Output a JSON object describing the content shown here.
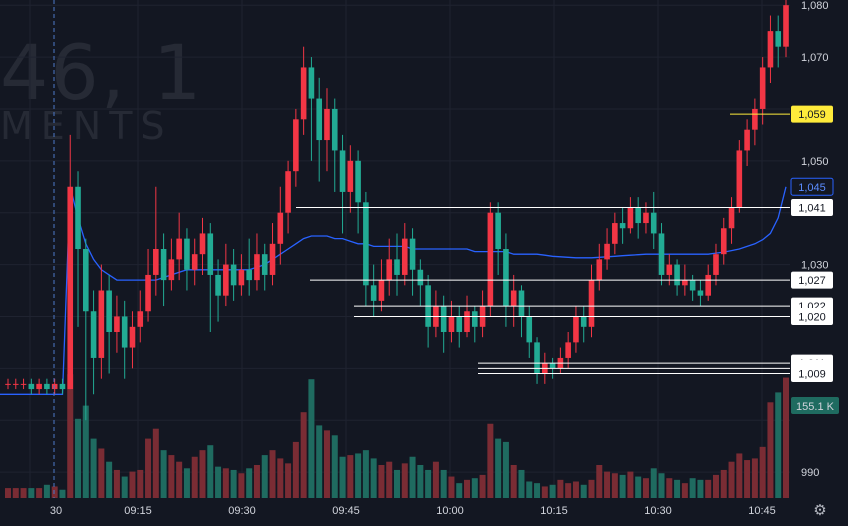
{
  "watermark": {
    "line1": "46, 1",
    "line2": "MENTS"
  },
  "colors": {
    "background": "#131722",
    "grid": "#1f2330",
    "up": "#f23645",
    "down": "#22ab94",
    "vwap": "#2962ff",
    "axis_text": "#d1d4dc",
    "highlight_label": "#ffeb3b"
  },
  "chart_data": {
    "type": "candlestick",
    "y_ticks": [
      "1,080",
      "1,070",
      "1,050",
      "1,030",
      "990"
    ],
    "y_tick_values": [
      1080,
      1070,
      1050,
      1030,
      990
    ],
    "x_ticks": [
      "30",
      "09:15",
      "09:30",
      "09:45",
      "10:00",
      "10:15",
      "10:30",
      "10:45"
    ],
    "ylim": [
      985,
      1081
    ],
    "price_labels": [
      {
        "text": "1,059",
        "value": 1059,
        "style": "yellow"
      },
      {
        "text": "1,045",
        "value": 1045,
        "style": "blue"
      },
      {
        "text": "1,041",
        "value": 1041,
        "style": "white"
      },
      {
        "text": "1,027",
        "value": 1027,
        "style": "white"
      },
      {
        "text": "1,022",
        "value": 1022,
        "style": "white"
      },
      {
        "text": "1,020",
        "value": 1020,
        "style": "white"
      },
      {
        "text": "1,011",
        "value": 1011,
        "style": "white"
      },
      {
        "text": "1,010",
        "value": 1010,
        "style": "white"
      },
      {
        "text": "1,009",
        "value": 1009,
        "style": "white"
      }
    ],
    "volume_label": "155.1 K",
    "candles": [
      [
        1007,
        1007,
        1006,
        1008
      ],
      [
        1007,
        1007,
        1006,
        1008
      ],
      [
        1007,
        1007,
        1006,
        1008
      ],
      [
        1007,
        1006,
        1005,
        1008
      ],
      [
        1006,
        1007,
        1005,
        1008
      ],
      [
        1007,
        1006,
        1005,
        1008
      ],
      [
        1006,
        1007,
        1005,
        1008
      ],
      [
        1007,
        1006,
        1005,
        1008
      ],
      [
        1006,
        1045,
        1006,
        1055
      ],
      [
        1045,
        1033,
        1018,
        1048
      ],
      [
        1033,
        1021,
        1000,
        1035
      ],
      [
        1021,
        1012,
        1005,
        1025
      ],
      [
        1012,
        1025,
        1008,
        1030
      ],
      [
        1025,
        1017,
        1009,
        1028
      ],
      [
        1017,
        1020,
        1013,
        1024
      ],
      [
        1020,
        1014,
        1008,
        1023
      ],
      [
        1014,
        1018,
        1010,
        1021
      ],
      [
        1018,
        1021,
        1015,
        1025
      ],
      [
        1021,
        1028,
        1019,
        1033
      ],
      [
        1028,
        1033,
        1024,
        1045
      ],
      [
        1033,
        1027,
        1022,
        1036
      ],
      [
        1027,
        1031,
        1025,
        1035
      ],
      [
        1031,
        1035,
        1027,
        1040
      ],
      [
        1035,
        1029,
        1025,
        1037
      ],
      [
        1029,
        1032,
        1026,
        1035
      ],
      [
        1032,
        1036,
        1028,
        1039
      ],
      [
        1036,
        1028,
        1017,
        1038
      ],
      [
        1028,
        1024,
        1019,
        1031
      ],
      [
        1024,
        1030,
        1022,
        1034
      ],
      [
        1030,
        1026,
        1023,
        1033
      ],
      [
        1026,
        1029,
        1024,
        1032
      ],
      [
        1029,
        1027,
        1024,
        1035
      ],
      [
        1027,
        1032,
        1025,
        1036
      ],
      [
        1032,
        1028,
        1025,
        1034
      ],
      [
        1028,
        1034,
        1026,
        1038
      ],
      [
        1034,
        1040,
        1030,
        1045
      ],
      [
        1040,
        1048,
        1036,
        1050
      ],
      [
        1048,
        1058,
        1045,
        1060
      ],
      [
        1058,
        1068,
        1055,
        1072
      ],
      [
        1068,
        1062,
        1050,
        1070
      ],
      [
        1062,
        1054,
        1046,
        1066
      ],
      [
        1054,
        1060,
        1048,
        1064
      ],
      [
        1060,
        1052,
        1044,
        1062
      ],
      [
        1052,
        1044,
        1036,
        1055
      ],
      [
        1044,
        1050,
        1040,
        1053
      ],
      [
        1050,
        1042,
        1036,
        1052
      ],
      [
        1042,
        1026,
        1022,
        1044
      ],
      [
        1026,
        1023,
        1020,
        1030
      ],
      [
        1023,
        1027,
        1021,
        1031
      ],
      [
        1027,
        1031,
        1024,
        1035
      ],
      [
        1031,
        1028,
        1024,
        1036
      ],
      [
        1028,
        1035,
        1026,
        1038
      ],
      [
        1035,
        1029,
        1024,
        1037
      ],
      [
        1029,
        1026,
        1022,
        1031
      ],
      [
        1026,
        1018,
        1014,
        1028
      ],
      [
        1018,
        1022,
        1016,
        1025
      ],
      [
        1022,
        1017,
        1013,
        1024
      ],
      [
        1017,
        1020,
        1015,
        1023
      ],
      [
        1020,
        1017,
        1014,
        1022
      ],
      [
        1017,
        1021,
        1016,
        1024
      ],
      [
        1021,
        1018,
        1015,
        1022
      ],
      [
        1018,
        1022,
        1016,
        1025
      ],
      [
        1022,
        1040,
        1020,
        1042
      ],
      [
        1040,
        1033,
        1028,
        1042
      ],
      [
        1033,
        1022,
        1018,
        1036
      ],
      [
        1022,
        1025,
        1018,
        1028
      ],
      [
        1025,
        1020,
        1016,
        1026
      ],
      [
        1020,
        1015,
        1012,
        1022
      ],
      [
        1015,
        1009,
        1007,
        1016
      ],
      [
        1009,
        1011,
        1007,
        1013
      ],
      [
        1011,
        1010,
        1008,
        1012
      ],
      [
        1010,
        1012,
        1009,
        1014
      ],
      [
        1012,
        1015,
        1010,
        1017
      ],
      [
        1015,
        1020,
        1013,
        1022
      ],
      [
        1020,
        1018,
        1015,
        1022
      ],
      [
        1018,
        1027,
        1016,
        1030
      ],
      [
        1027,
        1031,
        1025,
        1034
      ],
      [
        1031,
        1034,
        1029,
        1037
      ],
      [
        1034,
        1038,
        1032,
        1040
      ],
      [
        1038,
        1037,
        1034,
        1041
      ],
      [
        1037,
        1041,
        1036,
        1043
      ],
      [
        1041,
        1038,
        1035,
        1043
      ],
      [
        1038,
        1040,
        1036,
        1042
      ],
      [
        1040,
        1036,
        1033,
        1044
      ],
      [
        1036,
        1028,
        1026,
        1038
      ],
      [
        1028,
        1030,
        1026,
        1032
      ],
      [
        1030,
        1026,
        1024,
        1031
      ],
      [
        1026,
        1027,
        1024,
        1030
      ],
      [
        1027,
        1025,
        1023,
        1028
      ],
      [
        1025,
        1024,
        1022,
        1027
      ],
      [
        1024,
        1028,
        1023,
        1030
      ],
      [
        1028,
        1032,
        1026,
        1034
      ],
      [
        1032,
        1037,
        1030,
        1039
      ],
      [
        1037,
        1041,
        1034,
        1043
      ],
      [
        1041,
        1052,
        1040,
        1054
      ],
      [
        1052,
        1056,
        1049,
        1058
      ],
      [
        1056,
        1060,
        1053,
        1062
      ],
      [
        1060,
        1068,
        1057,
        1070
      ],
      [
        1068,
        1075,
        1065,
        1078
      ],
      [
        1075,
        1072,
        1068,
        1078
      ],
      [
        1072,
        1080,
        1070,
        1082
      ]
    ],
    "volume": [
      6,
      6,
      6,
      6,
      6,
      8,
      7,
      5,
      75,
      48,
      56,
      36,
      30,
      22,
      17,
      13,
      16,
      17,
      36,
      42,
      29,
      26,
      22,
      18,
      25,
      29,
      32,
      19,
      18,
      17,
      15,
      18,
      20,
      26,
      29,
      24,
      21,
      34,
      52,
      72,
      44,
      41,
      38,
      25,
      26,
      27,
      29,
      24,
      20,
      22,
      17,
      21,
      25,
      20,
      17,
      22,
      17,
      13,
      9,
      11,
      12,
      14,
      45,
      36,
      34,
      20,
      17,
      10,
      9,
      7,
      8,
      11,
      9,
      10,
      8,
      11,
      20,
      16,
      15,
      14,
      16,
      13,
      12,
      18,
      15,
      12,
      11,
      9,
      12,
      11,
      11,
      14,
      17,
      22,
      27,
      23,
      24,
      31,
      58,
      64,
      73
    ],
    "vwap": [
      1005,
      1005,
      1005,
      1005,
      1005,
      1005,
      1005,
      1005,
      1045,
      1039,
      1034,
      1031,
      1029,
      1028,
      1027,
      1027,
      1027,
      1027,
      1027,
      1027,
      1027.5,
      1028,
      1028.5,
      1029,
      1029,
      1029,
      1029,
      1029,
      1029,
      1029,
      1029,
      1029,
      1029.5,
      1030,
      1031,
      1032,
      1033,
      1034,
      1035,
      1035.5,
      1035.5,
      1035.5,
      1035,
      1035,
      1034.5,
      1034,
      1034,
      1033.5,
      1033.5,
      1033.5,
      1033.5,
      1033.5,
      1033,
      1033,
      1033,
      1033,
      1033,
      1033,
      1033,
      1033,
      1032.5,
      1032.5,
      1032.5,
      1032.5,
      1032.5,
      1032,
      1032,
      1032,
      1032,
      1031.8,
      1031.6,
      1031.5,
      1031.4,
      1031.3,
      1031.3,
      1031.3,
      1031.4,
      1031.5,
      1031.6,
      1031.7,
      1031.8,
      1031.9,
      1032,
      1032,
      1032,
      1032,
      1032,
      1032,
      1032,
      1032,
      1032,
      1032.2,
      1032.4,
      1032.7,
      1033,
      1033.5,
      1034,
      1034.8,
      1036,
      1039,
      1045
    ]
  }
}
